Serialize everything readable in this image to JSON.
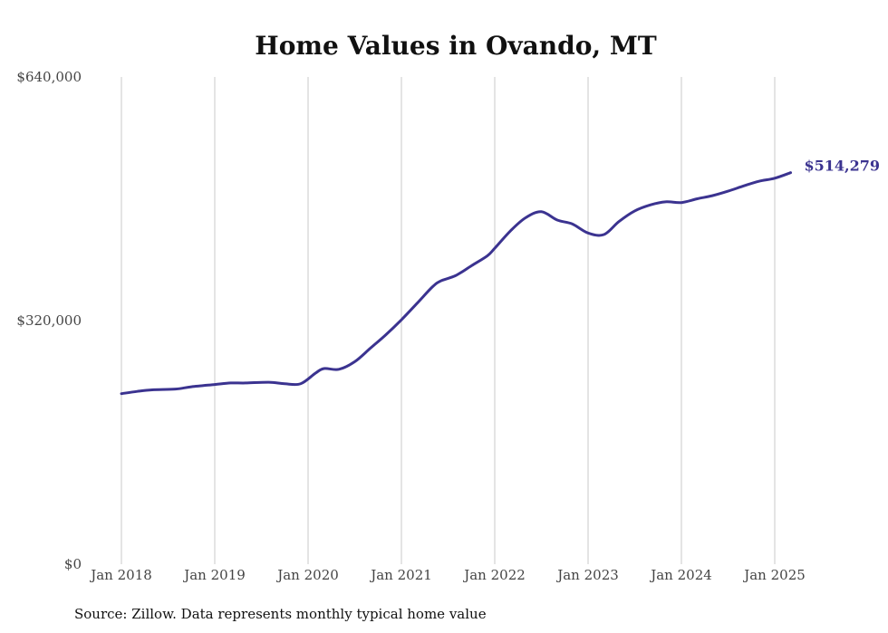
{
  "chart_data": {
    "type": "line",
    "title": "Home Values in Ovando, MT",
    "xlabel": "",
    "ylabel": "",
    "ylim": [
      0,
      640000
    ],
    "y_ticks": [
      {
        "value": 0,
        "label": "$0"
      },
      {
        "value": 320000,
        "label": "$320,000"
      },
      {
        "value": 640000,
        "label": "$640,000"
      }
    ],
    "x_ticks": [
      {
        "value": 2018.0,
        "label": "Jan 2018"
      },
      {
        "value": 2019.0,
        "label": "Jan 2019"
      },
      {
        "value": 2020.0,
        "label": "Jan 2020"
      },
      {
        "value": 2021.0,
        "label": "Jan 2021"
      },
      {
        "value": 2022.0,
        "label": "Jan 2022"
      },
      {
        "value": 2023.0,
        "label": "Jan 2023"
      },
      {
        "value": 2024.0,
        "label": "Jan 2024"
      },
      {
        "value": 2025.0,
        "label": "Jan 2025"
      }
    ],
    "grid": "vertical",
    "series": [
      {
        "color": "#3b3390",
        "end_label": "$514,279",
        "x": [
          2018.0,
          2018.17,
          2018.33,
          2018.58,
          2018.75,
          2019.0,
          2019.17,
          2019.33,
          2019.58,
          2019.75,
          2019.92,
          2020.08,
          2020.17,
          2020.33,
          2020.5,
          2020.67,
          2020.83,
          2021.0,
          2021.17,
          2021.33,
          2021.42,
          2021.58,
          2021.75,
          2021.92,
          2022.0,
          2022.17,
          2022.33,
          2022.5,
          2022.67,
          2022.83,
          2023.0,
          2023.17,
          2023.33,
          2023.5,
          2023.67,
          2023.83,
          2024.0,
          2024.17,
          2024.33,
          2024.5,
          2024.67,
          2024.83,
          2025.0,
          2025.17
        ],
        "y": [
          224000,
          227000,
          229000,
          230000,
          233000,
          236000,
          238000,
          238000,
          239000,
          237000,
          237000,
          251000,
          257000,
          256000,
          266000,
          284000,
          301000,
          321000,
          343000,
          364000,
          372000,
          379000,
          392000,
          405000,
          415000,
          438000,
          455000,
          463000,
          452000,
          447000,
          435000,
          433000,
          450000,
          464000,
          472000,
          476000,
          475000,
          480000,
          484000,
          490000,
          497000,
          503000,
          507000,
          514279
        ]
      }
    ]
  },
  "footer": {
    "source": "Source: Zillow. Data represents monthly typical home value"
  }
}
